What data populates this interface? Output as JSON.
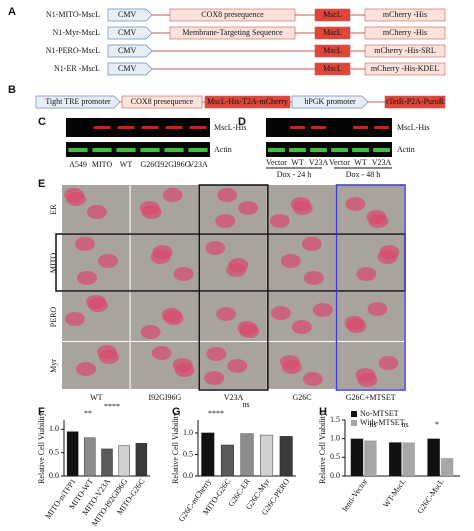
{
  "panel_a": {
    "label": "A",
    "rows": [
      {
        "name": "N1-MITO-MscL",
        "promoter": "CMV",
        "segments": [
          "COX8 presequence",
          "MscL",
          "mCherry -His"
        ]
      },
      {
        "name": "N1-Myr-MscL",
        "promoter": "CMV",
        "segments": [
          "Membrane-Targeting Sequence",
          "MscL",
          "mCherry -His"
        ]
      },
      {
        "name": "N1-PERO-MscL",
        "promoter": "CMV",
        "segments": [
          "MscL",
          "mCherry -His-SRL"
        ]
      },
      {
        "name": "N1-ER -MscL",
        "promoter": "CMV",
        "segments": [
          "MscL",
          "mCherry -His-KDEL"
        ]
      }
    ]
  },
  "panel_b": {
    "label": "B",
    "segments": [
      "Tight TRE promoter",
      "COX8 presequence",
      "MscL-His-T2A-mCherry",
      "hPGK promoter",
      "rTetR-P2A-PuroR"
    ]
  },
  "panel_c": {
    "label": "C",
    "bands": [
      "MscL-His",
      "Actin"
    ],
    "lanes": [
      "A549",
      "MITO",
      "WT",
      "G26C",
      "I92GI96G",
      "V23A"
    ]
  },
  "panel_d": {
    "label": "D",
    "bands": [
      "MscL-His",
      "Actin"
    ],
    "lanes": [
      "Vector",
      "WT",
      "V23A",
      "Vector",
      "WT",
      "V23A"
    ],
    "groups": [
      "Dox - 24 h",
      "Dox - 48 h"
    ]
  },
  "panel_e": {
    "label": "E",
    "rows": [
      "ER",
      "MITO",
      "PERO",
      "Myr"
    ],
    "columns": [
      "WT",
      "I92GI96G",
      "V23A",
      "G26C",
      "G26C+MTSET"
    ]
  },
  "chart_data": [
    {
      "type": "bar",
      "label": "F",
      "y_label": "Relative Cell Viability",
      "categories": [
        "MITO-mTFP1",
        "MITO-WT",
        "MITO-V23A",
        "MITO-I92GI96G",
        "MITO-G26C"
      ],
      "values": [
        0.95,
        0.82,
        0.58,
        0.65,
        0.7
      ],
      "colors": [
        "#111111",
        "#8c8c8c",
        "#5a5a5a",
        "#d0d0d0",
        "#3a3a3a"
      ],
      "ylim": [
        0,
        1.2
      ],
      "yticks": [
        {
          "value": 0,
          "label": "0.0"
        },
        {
          "value": 0.5,
          "label": "0.5"
        },
        {
          "value": 1,
          "label": "1.0"
        }
      ],
      "annotations": [
        "**",
        "****"
      ]
    },
    {
      "type": "bar",
      "label": "G",
      "y_label": "Relative Cell Viability",
      "categories": [
        "G26C-mCherry",
        "MITO-G26C",
        "G26C-ER",
        "G26C-Myr",
        "G26C-PERO"
      ],
      "values": [
        1.0,
        0.72,
        0.98,
        0.95,
        0.92
      ],
      "colors": [
        "#111111",
        "#5a5a5a",
        "#8c8c8c",
        "#d0d0d0",
        "#3a3a3a"
      ],
      "ylim": [
        0,
        1.3
      ],
      "yticks": [
        {
          "value": 0,
          "label": "0.0"
        },
        {
          "value": 0.5,
          "label": "0.5"
        },
        {
          "value": 1,
          "label": "1.0"
        }
      ],
      "annotations": [
        "****",
        "ns"
      ]
    },
    {
      "type": "grouped-bar",
      "label": "H",
      "y_label": "Relative Cell Viability",
      "categories": [
        "lenti-Vector",
        "WT-MscL",
        "G26C-MscL"
      ],
      "series": [
        {
          "name": "No-MTSET",
          "color": "#111111",
          "values": [
            1.0,
            0.9,
            1.0
          ]
        },
        {
          "name": "With-MTSET",
          "color": "#a6a6a6",
          "values": [
            0.95,
            0.9,
            0.48
          ]
        }
      ],
      "ylim": [
        0,
        1.5
      ],
      "yticks": [
        {
          "value": 0,
          "label": "0.0"
        },
        {
          "value": 0.5,
          "label": "0.5"
        },
        {
          "value": 1,
          "label": "1.0"
        },
        {
          "value": 1.5,
          "label": "1.5"
        }
      ],
      "annotations": [
        "ns",
        "ns",
        "*"
      ]
    }
  ]
}
